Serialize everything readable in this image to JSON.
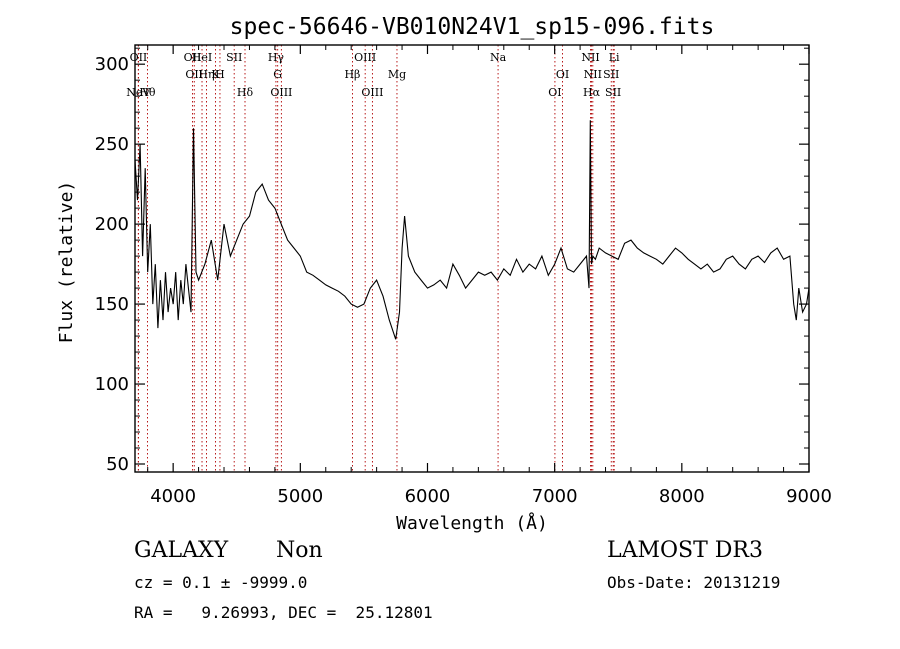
{
  "chart_data": {
    "type": "line",
    "title": "spec-56646-VB010N24V1_sp15-096.fits",
    "xlabel": "Wavelength (Å)",
    "ylabel": "Flux (relative)",
    "xlim": [
      3700,
      9000
    ],
    "ylim": [
      45,
      312
    ],
    "xticks": [
      4000,
      5000,
      6000,
      7000,
      8000,
      9000
    ],
    "yticks": [
      50,
      100,
      150,
      200,
      250,
      300
    ],
    "grid": false,
    "series": [
      {
        "name": "flux",
        "x": [
          3700,
          3720,
          3740,
          3760,
          3780,
          3800,
          3820,
          3840,
          3860,
          3880,
          3900,
          3920,
          3940,
          3960,
          3980,
          4000,
          4020,
          4040,
          4060,
          4080,
          4100,
          4120,
          4140,
          4160,
          4180,
          4200,
          4250,
          4300,
          4350,
          4400,
          4450,
          4500,
          4550,
          4600,
          4650,
          4700,
          4750,
          4800,
          4850,
          4900,
          4950,
          5000,
          5050,
          5100,
          5150,
          5200,
          5250,
          5300,
          5350,
          5400,
          5450,
          5500,
          5550,
          5600,
          5650,
          5700,
          5750,
          5780,
          5800,
          5820,
          5850,
          5900,
          5950,
          6000,
          6050,
          6100,
          6150,
          6200,
          6250,
          6300,
          6350,
          6400,
          6450,
          6500,
          6550,
          6600,
          6650,
          6700,
          6750,
          6800,
          6850,
          6900,
          6950,
          7000,
          7050,
          7100,
          7150,
          7200,
          7250,
          7270,
          7280,
          7290,
          7300,
          7320,
          7350,
          7400,
          7450,
          7500,
          7550,
          7600,
          7650,
          7700,
          7750,
          7800,
          7850,
          7900,
          7950,
          8000,
          8050,
          8100,
          8150,
          8200,
          8250,
          8300,
          8350,
          8400,
          8450,
          8500,
          8550,
          8600,
          8650,
          8700,
          8750,
          8800,
          8850,
          8880,
          8900,
          8920,
          8950,
          8980,
          9000
        ],
        "y": [
          240,
          215,
          250,
          180,
          235,
          170,
          200,
          150,
          175,
          135,
          165,
          140,
          170,
          145,
          160,
          150,
          170,
          140,
          165,
          150,
          175,
          160,
          145,
          260,
          170,
          165,
          175,
          190,
          165,
          200,
          180,
          190,
          200,
          205,
          220,
          225,
          215,
          210,
          200,
          190,
          185,
          180,
          170,
          168,
          165,
          162,
          160,
          158,
          155,
          150,
          148,
          150,
          160,
          165,
          155,
          140,
          128,
          145,
          185,
          205,
          180,
          170,
          165,
          160,
          162,
          165,
          160,
          175,
          168,
          160,
          165,
          170,
          168,
          170,
          165,
          172,
          168,
          178,
          170,
          175,
          172,
          180,
          168,
          175,
          185,
          172,
          170,
          175,
          180,
          160,
          265,
          175,
          180,
          178,
          185,
          182,
          180,
          178,
          188,
          190,
          185,
          182,
          180,
          178,
          175,
          180,
          185,
          182,
          178,
          175,
          172,
          175,
          170,
          172,
          178,
          180,
          175,
          172,
          178,
          180,
          176,
          182,
          185,
          178,
          180,
          150,
          140,
          160,
          145,
          150,
          160
        ]
      }
    ],
    "lines": [
      {
        "name": "NeV",
        "x": 3726,
        "row": 3
      },
      {
        "name": "OII",
        "x": 3727,
        "row": 1
      },
      {
        "name": "Hθ",
        "x": 3798,
        "row": 3
      },
      {
        "name": "OII",
        "x": 4152,
        "row": 1
      },
      {
        "name": "OII",
        "x": 4166,
        "row": 2
      },
      {
        "name": "HeI",
        "x": 4227,
        "row": 1
      },
      {
        "name": "Hη",
        "x": 4262,
        "row": 2
      },
      {
        "name": "K",
        "x": 4333,
        "row": 2
      },
      {
        "name": "H",
        "x": 4368,
        "row": 2
      },
      {
        "name": "SII",
        "x": 4480,
        "row": 1
      },
      {
        "name": "Hδ",
        "x": 4565,
        "row": 3
      },
      {
        "name": "Hγ",
        "x": 4808,
        "row": 1
      },
      {
        "name": "G",
        "x": 4822,
        "row": 2
      },
      {
        "name": "OIII",
        "x": 4851,
        "row": 3
      },
      {
        "name": "Hβ",
        "x": 5410,
        "row": 2
      },
      {
        "name": "OIII",
        "x": 5510,
        "row": 1
      },
      {
        "name": "OIII",
        "x": 5567,
        "row": 3
      },
      {
        "name": "Mg",
        "x": 5760,
        "row": 2
      },
      {
        "name": "Na",
        "x": 6555,
        "row": 1
      },
      {
        "name": "OI",
        "x": 7002,
        "row": 3
      },
      {
        "name": "OI",
        "x": 7062,
        "row": 2
      },
      {
        "name": "NII",
        "x": 7282,
        "row": 1
      },
      {
        "name": "NII",
        "x": 7300,
        "row": 2
      },
      {
        "name": "Hα",
        "x": 7290,
        "row": 3
      },
      {
        "name": "SII",
        "x": 7445,
        "row": 2
      },
      {
        "name": "SII",
        "x": 7460,
        "row": 3
      },
      {
        "name": "Li",
        "x": 7468,
        "row": 1
      }
    ]
  },
  "info": {
    "object_class": "GALAXY",
    "subclass": "Non",
    "survey": "LAMOST DR3",
    "cz_line": "cz = 0.1 ± -9999.0",
    "obs_date_line": "Obs-Date: 20131219",
    "radec_line": "RA =   9.26993, DEC =  25.12801"
  },
  "colors": {
    "axis": "#000000",
    "spectrum": "#000000",
    "line_marker": "#b00000"
  }
}
